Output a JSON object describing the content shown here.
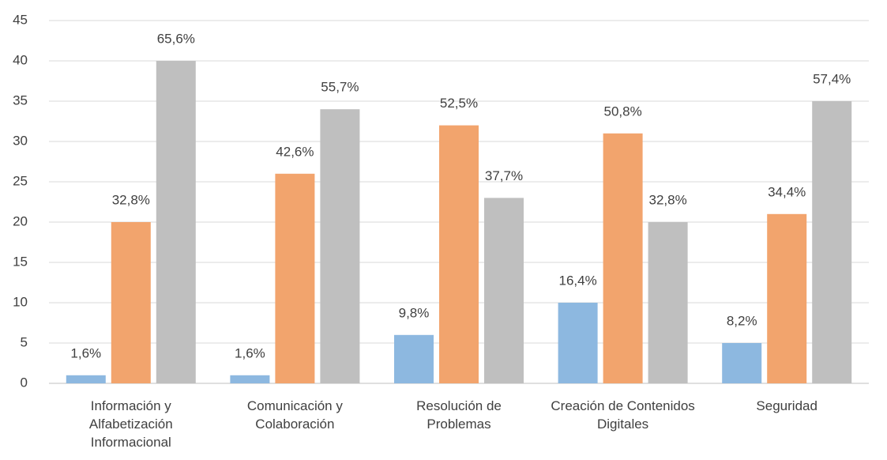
{
  "chart_data": {
    "type": "bar",
    "categories": [
      "Información y Alfabetización Informacional",
      "Comunicación y Colaboración",
      "Resolución de Problemas",
      "Creación de Contenidos Digitales",
      "Seguridad"
    ],
    "series": [
      {
        "color": "#8db8e0",
        "values": [
          1,
          1,
          6,
          10,
          5
        ],
        "value_labels": [
          "1,6%",
          "1,6%",
          "9,8%",
          "16,4%",
          "8,2%"
        ]
      },
      {
        "color": "#f2a46d",
        "values": [
          20,
          26,
          32,
          31,
          21
        ],
        "value_labels": [
          "32,8%",
          "42,6%",
          "52,5%",
          "50,8%",
          "34,4%"
        ]
      },
      {
        "color": "#bfbfbf",
        "values": [
          40,
          34,
          23,
          20,
          35
        ],
        "value_labels": [
          "65,6%",
          "55,7%",
          "37,7%",
          "32,8%",
          "57,4%"
        ]
      }
    ],
    "ylim": [
      0,
      45
    ],
    "yticks": [
      0,
      5,
      10,
      15,
      20,
      25,
      30,
      35,
      40,
      45
    ],
    "grid": true
  }
}
